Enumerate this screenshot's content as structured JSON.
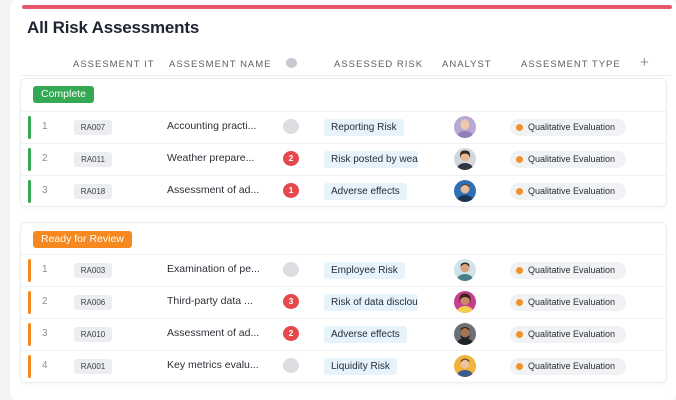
{
  "page_title": "All Risk Assessments",
  "columns": {
    "id": "ASSESMENT IT",
    "name": "ASSESMENT NAME",
    "risk": "ASSESSED RISK",
    "analyst": "ANALYST",
    "type": "ASSESMENT TYPE",
    "add": "+"
  },
  "colors": {
    "accent_strip": "#e8566b",
    "complete": "#34a853",
    "ready": "#f5891f",
    "comment_active": "#e5484d",
    "type_dot": "#f0922b"
  },
  "groups": [
    {
      "label": "Complete",
      "color": "#34a853",
      "rows": [
        {
          "num": "1",
          "id": "RA007",
          "name": "Accounting practi...",
          "comments": "",
          "risk": "Reporting Risk",
          "type": "Qualitative Evaluation"
        },
        {
          "num": "2",
          "id": "RA011",
          "name": "Weather prepare...",
          "comments": "2",
          "risk": "Risk posted by wea",
          "type": "Qualitative Evaluation"
        },
        {
          "num": "3",
          "id": "RA018",
          "name": "Assessment of ad...",
          "comments": "1",
          "risk": "Adverse effects",
          "type": "Qualitative Evaluation"
        }
      ]
    },
    {
      "label": "Ready for Review",
      "color": "#f5891f",
      "rows": [
        {
          "num": "1",
          "id": "RA003",
          "name": "Examination of pe...",
          "comments": "",
          "risk": "Employee Risk",
          "type": "Qualitative Evaluation"
        },
        {
          "num": "2",
          "id": "RA006",
          "name": "Third-party data ...",
          "comments": "3",
          "risk": "Risk of data disclou",
          "type": "Qualitative Evaluation"
        },
        {
          "num": "3",
          "id": "RA010",
          "name": "Assessment of ad...",
          "comments": "2",
          "risk": "Adverse effects",
          "type": "Qualitative Evaluation"
        },
        {
          "num": "4",
          "id": "RA001",
          "name": "Key metrics evalu...",
          "comments": "",
          "risk": "Liquidity Risk",
          "type": "Qualitative Evaluation"
        }
      ]
    }
  ]
}
